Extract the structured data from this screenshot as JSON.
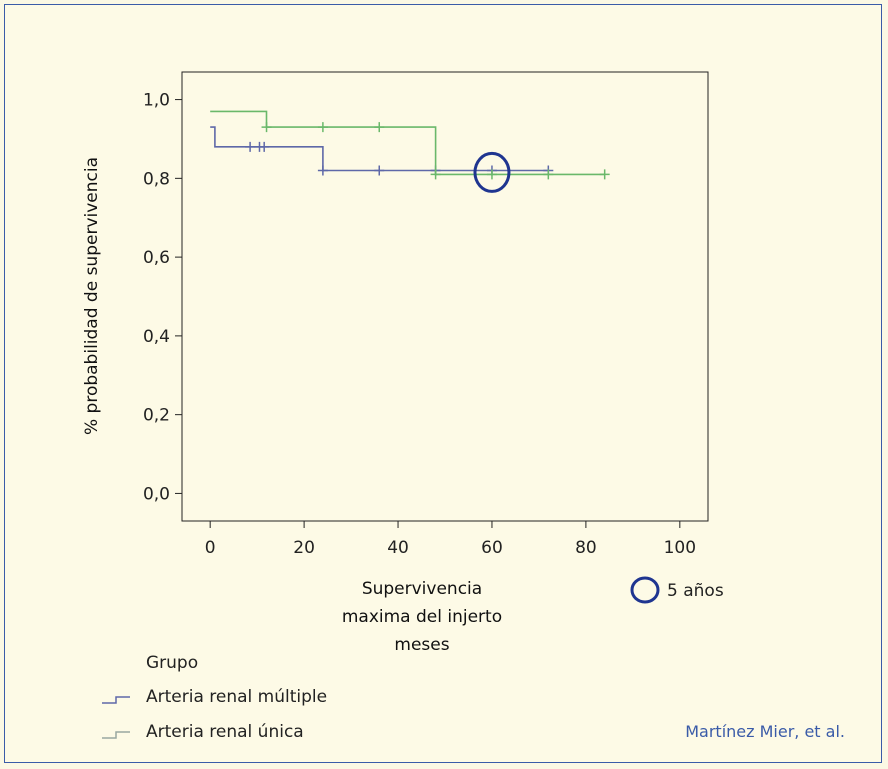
{
  "chart_data": {
    "type": "line",
    "subtype": "kaplan-meier-step",
    "xlabel_lines": [
      "Supervivencia",
      "maxima del injerto",
      "meses"
    ],
    "ylabel": "% probabilidad de supervivencia",
    "xlim": [
      -6,
      106
    ],
    "ylim": [
      -0.07,
      1.07
    ],
    "x_ticks": [
      0,
      20,
      40,
      60,
      80,
      100
    ],
    "x_tick_labels": [
      "0",
      "20",
      "40",
      "60",
      "80",
      "100"
    ],
    "y_ticks": [
      0.0,
      0.2,
      0.4,
      0.6,
      0.8,
      1.0
    ],
    "y_tick_labels": [
      "0,0",
      "0,2",
      "0,4",
      "0,6",
      "0,8",
      "1,0"
    ],
    "grid": false,
    "legend": {
      "title": "Grupo",
      "position": "bottom-left",
      "entries": [
        "Arteria renal múltiple",
        "Arteria renal única"
      ]
    },
    "series": [
      {
        "name": "Arteria renal múltiple",
        "color": "#5e68a8",
        "steps": [
          [
            0,
            0.93
          ],
          [
            1,
            0.93
          ],
          [
            1,
            0.88
          ],
          [
            24,
            0.88
          ],
          [
            24,
            0.82
          ],
          [
            72,
            0.82
          ]
        ],
        "censored": [
          [
            8.5,
            0.88
          ],
          [
            10.5,
            0.88
          ],
          [
            11.5,
            0.88
          ],
          [
            24,
            0.82
          ],
          [
            36,
            0.82
          ],
          [
            48,
            0.82
          ],
          [
            60,
            0.82
          ],
          [
            72,
            0.82
          ]
        ]
      },
      {
        "name": "Arteria renal única",
        "color": "#6ab86a",
        "steps": [
          [
            0,
            0.97
          ],
          [
            12,
            0.97
          ],
          [
            12,
            0.93
          ],
          [
            48,
            0.93
          ],
          [
            48,
            0.81
          ],
          [
            84,
            0.81
          ]
        ],
        "censored": [
          [
            12,
            0.93
          ],
          [
            24,
            0.93
          ],
          [
            36,
            0.93
          ],
          [
            48,
            0.81
          ],
          [
            60,
            0.81
          ],
          [
            72,
            0.81
          ],
          [
            84,
            0.81
          ]
        ]
      }
    ],
    "annotation": {
      "marker": "circle",
      "x": 60,
      "y": 0.815,
      "color": "#1f3590",
      "legend_label": "5 años"
    }
  },
  "credit": "Martínez Mier, et al."
}
